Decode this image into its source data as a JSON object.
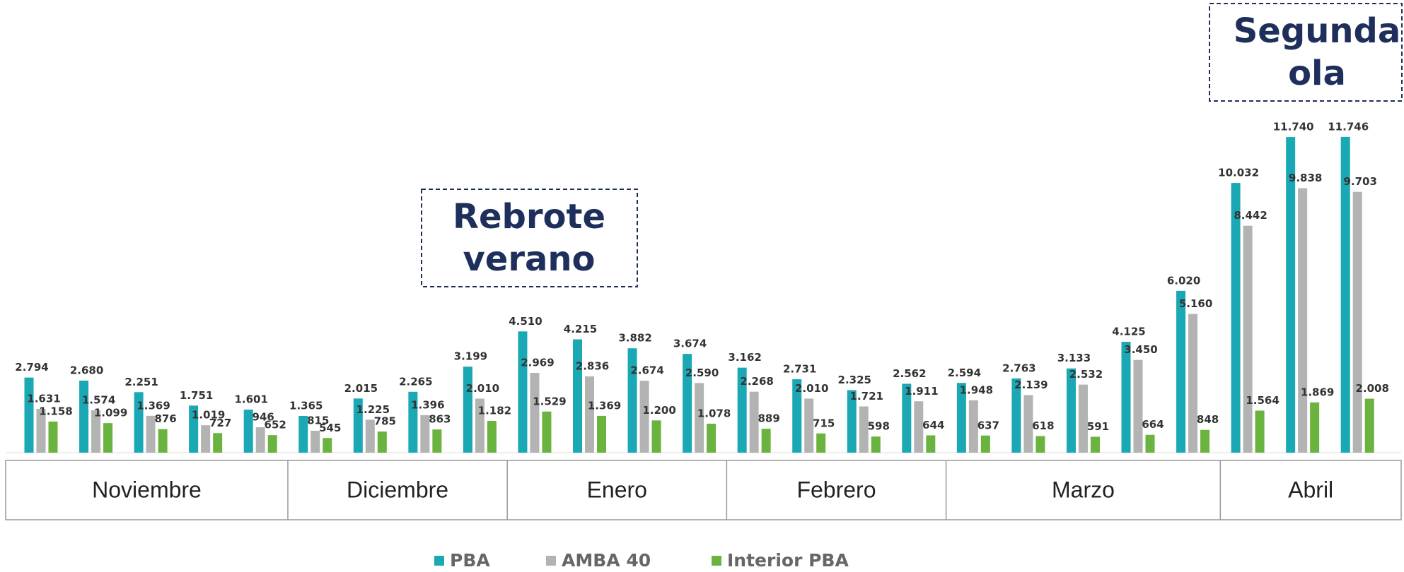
{
  "chart_data": {
    "type": "bar",
    "categories": [
      null,
      null,
      null,
      null,
      null,
      null,
      null,
      null,
      null,
      null,
      null,
      null,
      null,
      null,
      null,
      null,
      null,
      null,
      null,
      null,
      null,
      null,
      null,
      null,
      null
    ],
    "months": [
      {
        "label": "Noviembre",
        "count": 5
      },
      {
        "label": "Diciembre",
        "count": 4
      },
      {
        "label": "Enero",
        "count": 4
      },
      {
        "label": "Febrero",
        "count": 4
      },
      {
        "label": "Marzo",
        "count": 5
      },
      {
        "label": "Abril",
        "count": 3
      }
    ],
    "series": [
      {
        "name": "PBA",
        "color": "#1aa8b4",
        "values": [
          2794,
          2680,
          2251,
          1751,
          1601,
          1365,
          2015,
          2265,
          3199,
          4510,
          4215,
          3882,
          3674,
          3162,
          2731,
          2325,
          2562,
          2594,
          2763,
          3133,
          4125,
          6020,
          10032,
          11740,
          11746
        ],
        "value_labels": [
          "2.794",
          "2.680",
          "2.251",
          "1.751",
          "1.601",
          "1.365",
          "2.015",
          "2.265",
          "3.199",
          "4.510",
          "4.215",
          "3.882",
          "3.674",
          "3.162",
          "2.731",
          "2.325",
          "2.562",
          "2.594",
          "2.763",
          "3.133",
          "4.125",
          "6.020",
          "10.032",
          "11.740",
          "11.746"
        ]
      },
      {
        "name": "AMBA 40",
        "color": "#b3b3b3",
        "values": [
          1631,
          1574,
          1369,
          1019,
          946,
          815,
          1225,
          1396,
          2010,
          2969,
          2836,
          2674,
          2590,
          2268,
          2010,
          1721,
          1911,
          1948,
          2139,
          2532,
          3450,
          5160,
          8442,
          9838,
          9703
        ],
        "value_labels": [
          "1.631",
          "1.574",
          "1.369",
          "1.019",
          "946",
          "815",
          "1.225",
          "1.396",
          "2.010",
          "2.969",
          "2.836",
          "2.674",
          "2.590",
          "2.268",
          "2.010",
          "1.721",
          "1.911",
          "1.948",
          "2.139",
          "2.532",
          "3.450",
          "5.160",
          "8.442",
          "9.838",
          "9.703"
        ]
      },
      {
        "name": "Interior PBA",
        "color": "#6ab33e",
        "values": [
          1158,
          1099,
          876,
          727,
          652,
          545,
          785,
          863,
          1182,
          1529,
          1369,
          1200,
          1078,
          889,
          715,
          598,
          644,
          637,
          618,
          591,
          664,
          848,
          1564,
          1869,
          2008
        ],
        "value_labels": [
          "1.158",
          "1.099",
          "876",
          "727",
          "652",
          "545",
          "785",
          "863",
          "1.182",
          "1.529",
          "1.369",
          "1.200",
          "1.078",
          "889",
          "715",
          "598",
          "644",
          "637",
          "618",
          "591",
          "664",
          "848",
          "1.564",
          "1.869",
          "2.008"
        ]
      }
    ],
    "ylim": [
      0,
      15000
    ],
    "annotations": [
      {
        "lines": [
          "Rebrote",
          "verano"
        ]
      },
      {
        "lines": [
          "Segunda",
          "ola"
        ]
      }
    ],
    "legend": "bottom"
  }
}
